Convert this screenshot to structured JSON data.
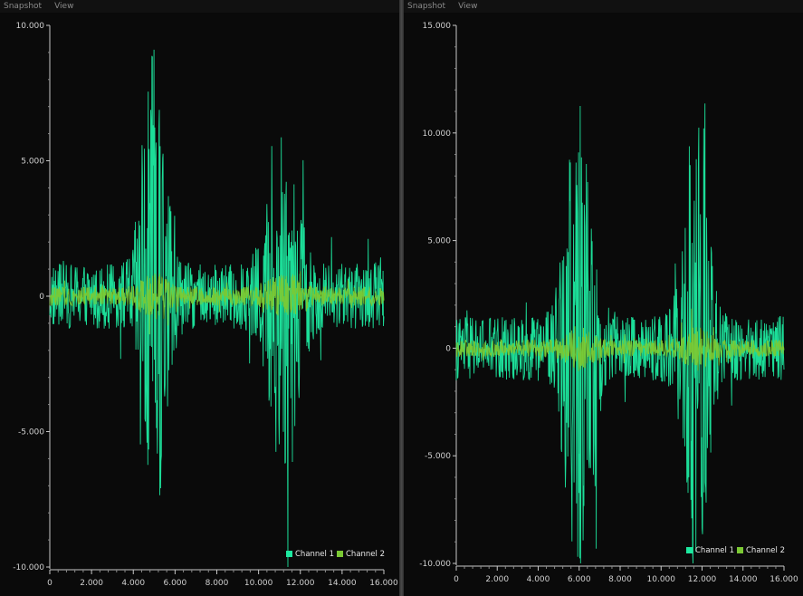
{
  "panels": [
    {
      "menu": [
        "Snapshot",
        "View"
      ]
    },
    {
      "menu": [
        "Snapshot",
        "View"
      ]
    }
  ],
  "colors": {
    "channel1": "#1de9a0",
    "channel2": "#7bc934",
    "axis": "#c8c8c8",
    "background": "#0a0a0a"
  },
  "chart_data": [
    {
      "type": "line",
      "xlim": [
        0,
        16000
      ],
      "ylim": [
        -10000,
        10000
      ],
      "x_ticks": [
        0,
        2000,
        4000,
        6000,
        8000,
        10000,
        12000,
        14000,
        16000
      ],
      "x_tick_labels": [
        "0",
        "2.000",
        "4.000",
        "6.000",
        "8.000",
        "10.000",
        "12.000",
        "14.000",
        "16.000"
      ],
      "y_ticks": [
        10000,
        5000,
        0,
        -5000,
        -10000
      ],
      "y_tick_labels": [
        "10.000",
        "5.000",
        "0",
        "-5.000",
        "-10.000"
      ],
      "legend_position": "bottom-right",
      "series": [
        {
          "name": "Channel 1",
          "color": "#1de9a0",
          "noise_amplitude": 1200,
          "bursts": [
            {
              "center": 5000,
              "width": 700,
              "amplitude": 8000
            },
            {
              "center": 11200,
              "width": 900,
              "amplitude": 5500
            }
          ]
        },
        {
          "name": "Channel 2",
          "color": "#7bc934",
          "noise_amplitude": 350,
          "bursts": [
            {
              "center": 5000,
              "width": 700,
              "amplitude": 600
            },
            {
              "center": 11200,
              "width": 900,
              "amplitude": 500
            }
          ]
        }
      ]
    },
    {
      "type": "line",
      "xlim": [
        0,
        16000
      ],
      "ylim": [
        -10000,
        15000
      ],
      "x_ticks": [
        0,
        2000,
        4000,
        6000,
        8000,
        10000,
        12000,
        14000,
        16000
      ],
      "x_tick_labels": [
        "0",
        "2.000",
        "4.000",
        "6.000",
        "8.000",
        "10.000",
        "12.000",
        "14.000",
        "16.000"
      ],
      "y_ticks": [
        15000,
        10000,
        5000,
        0,
        -5000,
        -10000
      ],
      "y_tick_labels": [
        "15.000",
        "10.000",
        "5.000",
        "0",
        "-5.000",
        "-10.000"
      ],
      "legend_position": "bottom-right",
      "series": [
        {
          "name": "Channel 1",
          "color": "#1de9a0",
          "noise_amplitude": 1500,
          "bursts": [
            {
              "center": 6000,
              "width": 800,
              "amplitude": 10500
            },
            {
              "center": 11700,
              "width": 700,
              "amplitude": 10000
            }
          ]
        },
        {
          "name": "Channel 2",
          "color": "#7bc934",
          "noise_amplitude": 400,
          "bursts": [
            {
              "center": 6000,
              "width": 800,
              "amplitude": 700
            },
            {
              "center": 11700,
              "width": 700,
              "amplitude": 700
            }
          ]
        }
      ]
    }
  ]
}
